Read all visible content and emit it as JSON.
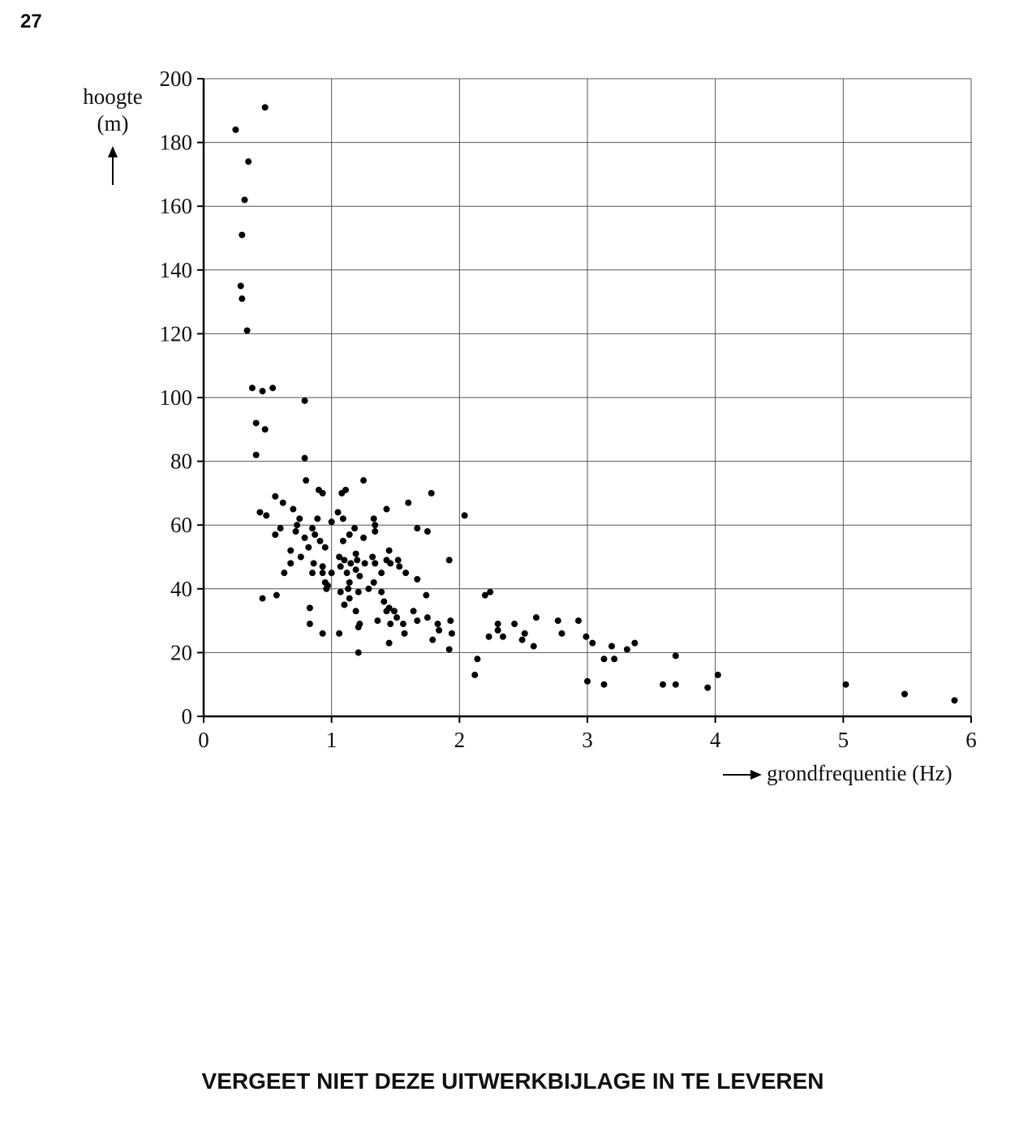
{
  "page_number": "27",
  "footer": "VERGEET NIET DEZE UITWERKBIJLAGE IN TE LEVEREN",
  "chart_data": {
    "type": "scatter",
    "ylabel_lines": [
      "hoogte",
      "(m)"
    ],
    "xlabel": "grondfrequentie (Hz)",
    "xlim": [
      0,
      6
    ],
    "xticks": [
      0,
      1,
      2,
      3,
      4,
      5,
      6
    ],
    "ylim": [
      0,
      200
    ],
    "yticks": [
      0,
      20,
      40,
      60,
      80,
      100,
      120,
      140,
      160,
      180,
      200
    ],
    "grid": true,
    "color": "#000000",
    "x": [
      0.25,
      0.48,
      0.35,
      0.32,
      0.3,
      0.29,
      0.3,
      0.34,
      0.38,
      0.46,
      0.54,
      0.79,
      0.41,
      0.48,
      0.41,
      0.79,
      0.8,
      1.25,
      0.56,
      0.9,
      0.93,
      1.08,
      1.11,
      1.78,
      0.62,
      1.6,
      0.44,
      0.49,
      0.7,
      0.75,
      0.89,
      1.05,
      1.09,
      1.33,
      1.43,
      2.04,
      0.73,
      0.72,
      0.6,
      0.56,
      0.85,
      0.87,
      1.0,
      1.18,
      1.34,
      1.34,
      1.67,
      1.75,
      0.79,
      0.91,
      1.09,
      1.14,
      1.25,
      0.68,
      0.82,
      0.95,
      1.45,
      0.76,
      0.68,
      0.86,
      1.06,
      1.1,
      1.15,
      1.19,
      1.2,
      1.26,
      1.32,
      1.34,
      1.43,
      1.46,
      1.52,
      1.92,
      0.63,
      0.85,
      0.93,
      0.93,
      1.0,
      1.07,
      1.12,
      1.19,
      1.22,
      1.39,
      1.53,
      1.58,
      1.67,
      0.95,
      0.97,
      0.96,
      1.14,
      1.07,
      1.13,
      1.21,
      1.29,
      1.33,
      1.39,
      0.57,
      0.46,
      1.1,
      1.14,
      1.41,
      1.74,
      2.2,
      2.24,
      0.83,
      1.19,
      1.45,
      1.43,
      1.49,
      1.64,
      1.36,
      1.22,
      1.21,
      1.46,
      1.51,
      1.56,
      1.67,
      1.75,
      1.83,
      1.93,
      0.83,
      0.93,
      1.06,
      1.57,
      1.84,
      1.94,
      1.79,
      1.45,
      1.92,
      1.21,
      2.23,
      2.3,
      2.3,
      2.34,
      2.43,
      2.49,
      2.51,
      2.6,
      2.58,
      2.77,
      2.8,
      2.93,
      2.99,
      3.04,
      2.14,
      2.12,
      3.0,
      3.13,
      3.13,
      3.21,
      3.19,
      3.31,
      3.37,
      3.59,
      3.69,
      3.69,
      3.94,
      4.02,
      5.02,
      5.48,
      5.87
    ],
    "values": [
      184,
      191,
      174,
      162,
      151,
      135,
      131,
      121,
      103,
      102,
      103,
      99,
      92,
      90,
      82,
      81,
      74,
      74,
      69,
      71,
      70,
      70,
      71,
      70,
      67,
      67,
      64,
      63,
      65,
      62,
      62,
      64,
      62,
      62,
      65,
      63,
      60,
      58,
      59,
      57,
      59,
      57,
      61,
      59,
      60,
      58,
      59,
      58,
      56,
      55,
      55,
      57,
      56,
      52,
      53,
      53,
      52,
      50,
      48,
      48,
      50,
      49,
      48,
      51,
      49,
      48,
      50,
      48,
      49,
      48,
      49,
      49,
      45,
      45,
      47,
      45,
      45,
      47,
      45,
      46,
      44,
      45,
      47,
      45,
      43,
      42,
      41,
      40,
      42,
      39,
      40,
      39,
      40,
      42,
      39,
      38,
      37,
      35,
      37,
      36,
      38,
      38,
      39,
      34,
      33,
      34,
      33,
      33,
      33,
      30,
      29,
      28,
      29,
      31,
      29,
      30,
      31,
      29,
      30,
      29,
      26,
      26,
      26,
      27,
      26,
      24,
      23,
      21,
      20,
      25,
      29,
      27,
      25,
      29,
      24,
      26,
      31,
      22,
      30,
      26,
      30,
      25,
      23,
      18,
      13,
      11,
      10,
      18,
      18,
      22,
      21,
      23,
      10,
      19,
      10,
      9,
      13,
      10,
      7,
      5
    ]
  }
}
